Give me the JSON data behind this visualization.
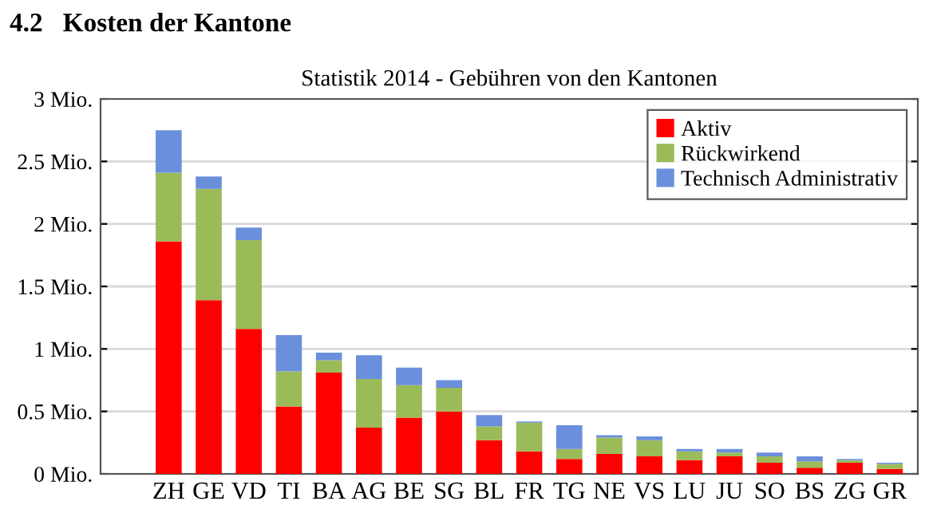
{
  "chart_data": {
    "type": "bar",
    "title": "4.2   Kosten der Kantone",
    "subtitle": "Statistik 2014 - Gebühren von den Kantonen",
    "categories": [
      "ZH",
      "GE",
      "VD",
      "TI",
      "BA",
      "AG",
      "BE",
      "SG",
      "BL",
      "FR",
      "TG",
      "NE",
      "VS",
      "LU",
      "JU",
      "SO",
      "BS",
      "ZG",
      "GR"
    ],
    "stacked": true,
    "series": [
      {
        "name": "Aktiv",
        "color": "#ff0000",
        "values": [
          1.86,
          1.39,
          1.16,
          0.54,
          0.81,
          0.37,
          0.45,
          0.5,
          0.27,
          0.18,
          0.12,
          0.16,
          0.14,
          0.11,
          0.14,
          0.09,
          0.05,
          0.09,
          0.04
        ]
      },
      {
        "name": "Rückwirkend",
        "color": "#9bbb59",
        "values": [
          0.55,
          0.89,
          0.71,
          0.28,
          0.1,
          0.39,
          0.26,
          0.19,
          0.11,
          0.23,
          0.08,
          0.13,
          0.13,
          0.07,
          0.03,
          0.05,
          0.05,
          0.02,
          0.04
        ]
      },
      {
        "name": "Technisch Administrativ",
        "color": "#6a8fdc",
        "values": [
          0.34,
          0.1,
          0.1,
          0.29,
          0.06,
          0.19,
          0.14,
          0.06,
          0.09,
          0.01,
          0.19,
          0.02,
          0.03,
          0.02,
          0.03,
          0.03,
          0.04,
          0.01,
          0.01
        ]
      }
    ],
    "ylim": [
      0,
      3
    ],
    "yticks": [
      {
        "value": 0,
        "label": "0 Mio."
      },
      {
        "value": 0.5,
        "label": "0.5 Mio."
      },
      {
        "value": 1,
        "label": "1 Mio."
      },
      {
        "value": 1.5,
        "label": "1.5 Mio."
      },
      {
        "value": 2,
        "label": "2 Mio."
      },
      {
        "value": 2.5,
        "label": "2.5 Mio."
      },
      {
        "value": 3,
        "label": "3 Mio."
      }
    ],
    "grid": "y",
    "legend": "top right"
  }
}
